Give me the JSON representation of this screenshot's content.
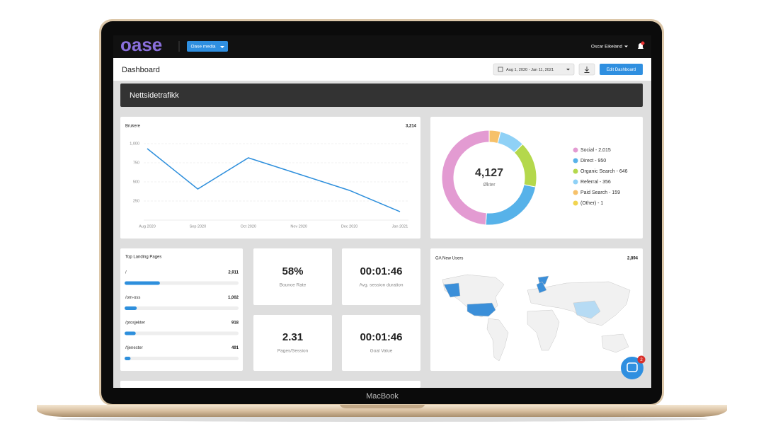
{
  "device_label": "MacBook",
  "nav": {
    "logo": "oase",
    "account_button": "Oase media",
    "user": "Oscar Eikeland"
  },
  "header": {
    "title": "Dashboard",
    "date_range": "Aug 1, 2020 - Jan 11, 2021",
    "edit_button": "Edit Dashboard"
  },
  "section_title": "Nettsidetrafikk",
  "chart_data": [
    {
      "type": "line",
      "title": "Brukere",
      "total": "3,214",
      "categories": [
        "Aug 2020",
        "Sep 2020",
        "Oct 2020",
        "Nov 2020",
        "Dec 2020",
        "Jan 2021"
      ],
      "values": [
        935,
        407,
        815,
        602,
        389,
        111
      ],
      "color": "#2e8fdc",
      "ylim": [
        0,
        1000
      ],
      "yticks": [
        250,
        500,
        750,
        {
          "value": 1000,
          "label": "1,000"
        }
      ],
      "grid": true
    },
    {
      "type": "pie",
      "total": "4,127",
      "total_caption": "Økter",
      "categories": [
        "Social - 2,015",
        "Direct - 950",
        "Organic Search - 646",
        "Referral - 356",
        "Paid Search - 159",
        "(Other) - 1"
      ],
      "values": [
        2015,
        950,
        646,
        356,
        159,
        1
      ],
      "colors": [
        "#e39bd2",
        "#57b2e9",
        "#b4d84c",
        "#8fd1f6",
        "#f6c16a",
        "#f1d44f"
      ]
    },
    {
      "type": "hbar",
      "title": "Top Landing Pages",
      "categories": [
        "/",
        "/om-oss",
        "/prosjekter",
        "/tjenester"
      ],
      "values": [
        2911,
        1002,
        918,
        491
      ],
      "value_labels": [
        "2,911",
        "1,002",
        "918",
        "491"
      ],
      "xlim": [
        0,
        9400
      ],
      "color": "#2e8fdc"
    }
  ],
  "stats": [
    {
      "value": "58%",
      "label": "Bounce Rate"
    },
    {
      "value": "00:01:46",
      "label": "Avg. session duration"
    },
    {
      "value": "2.31",
      "label": "Pages/Session"
    },
    {
      "value": "00:01:46",
      "label": "Goal Value"
    }
  ],
  "map": {
    "title": "GA New Users",
    "total": "2,894"
  },
  "chat_badge": "2"
}
